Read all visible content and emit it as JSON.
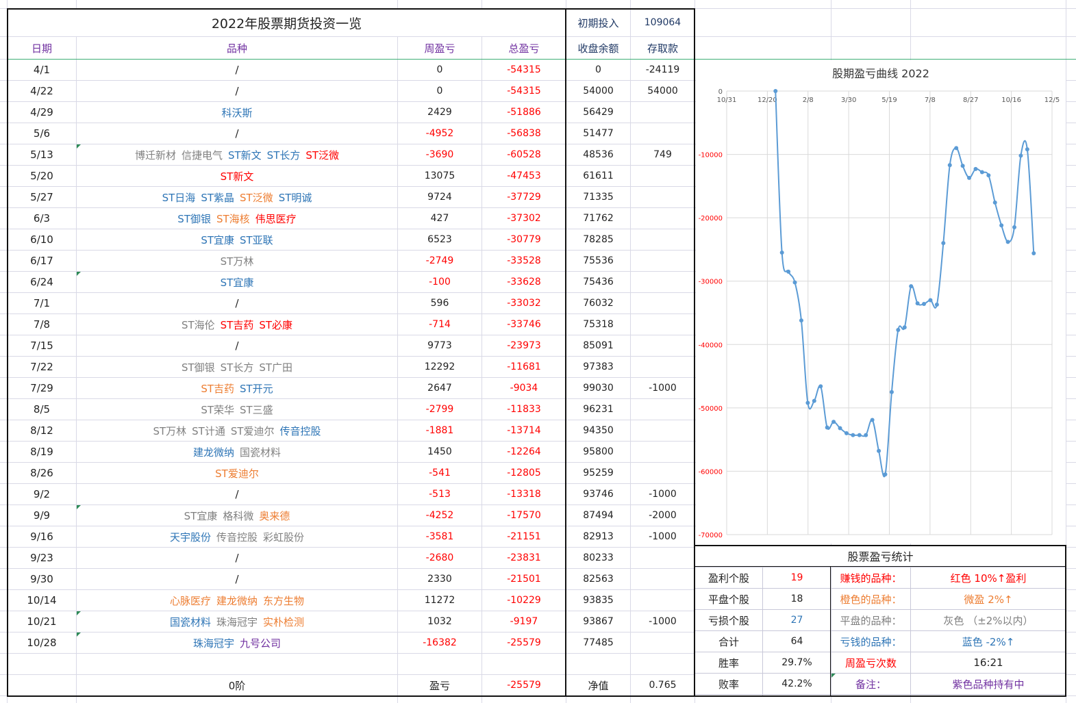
{
  "sheet_title": "2022年股票期货投资一览",
  "initial_invest_label": "初期投入",
  "initial_invest_value": "109064",
  "headers": {
    "date": "日期",
    "variety": "品种",
    "weekly": "周盈亏",
    "total": "总盈亏",
    "balance": "收盘余额",
    "deposit": "存取款"
  },
  "rows": [
    {
      "date": "4/1",
      "names": [
        {
          "t": "/",
          "c": "dark"
        }
      ],
      "weekly": "0",
      "total": "-54315",
      "balance": "0",
      "deposit": "-24119"
    },
    {
      "date": "4/22",
      "names": [
        {
          "t": "/",
          "c": "dark"
        }
      ],
      "weekly": "0",
      "total": "-54315",
      "balance": "54000",
      "deposit": "54000"
    },
    {
      "date": "4/29",
      "names": [
        {
          "t": "科沃斯",
          "c": "blue"
        }
      ],
      "weekly": "2429",
      "total": "-51886",
      "balance": "56429",
      "deposit": ""
    },
    {
      "date": "5/6",
      "names": [
        {
          "t": "/",
          "c": "dark"
        }
      ],
      "weekly": "-4952",
      "total": "-56838",
      "balance": "51477",
      "deposit": ""
    },
    {
      "date": "5/13",
      "names": [
        {
          "t": "博迁新材",
          "c": "gray"
        },
        {
          "t": "信捷电气",
          "c": "gray"
        },
        {
          "t": "ST新文",
          "c": "blue"
        },
        {
          "t": "ST长方",
          "c": "blue"
        },
        {
          "t": "ST泛微",
          "c": "red"
        }
      ],
      "weekly": "-3690",
      "total": "-60528",
      "balance": "48536",
      "deposit": "749"
    },
    {
      "date": "5/20",
      "names": [
        {
          "t": "ST新文",
          "c": "red"
        }
      ],
      "weekly": "13075",
      "total": "-47453",
      "balance": "61611",
      "deposit": ""
    },
    {
      "date": "5/27",
      "names": [
        {
          "t": "ST日海",
          "c": "blue"
        },
        {
          "t": "ST紫晶",
          "c": "blue"
        },
        {
          "t": "ST泛微",
          "c": "orange"
        },
        {
          "t": "ST明诚",
          "c": "blue"
        }
      ],
      "weekly": "9724",
      "total": "-37729",
      "balance": "71335",
      "deposit": ""
    },
    {
      "date": "6/3",
      "names": [
        {
          "t": "ST御银",
          "c": "blue"
        },
        {
          "t": "ST海核",
          "c": "orange"
        },
        {
          "t": "伟思医疗",
          "c": "red"
        }
      ],
      "weekly": "427",
      "total": "-37302",
      "balance": "71762",
      "deposit": ""
    },
    {
      "date": "6/10",
      "names": [
        {
          "t": "ST宜康",
          "c": "blue"
        },
        {
          "t": "ST亚联",
          "c": "blue"
        }
      ],
      "weekly": "6523",
      "total": "-30779",
      "balance": "78285",
      "deposit": ""
    },
    {
      "date": "6/17",
      "names": [
        {
          "t": "ST万林",
          "c": "gray"
        }
      ],
      "weekly": "-2749",
      "total": "-33528",
      "balance": "75536",
      "deposit": ""
    },
    {
      "date": "6/24",
      "names": [
        {
          "t": "ST宜康",
          "c": "blue"
        }
      ],
      "weekly": "-100",
      "total": "-33628",
      "balance": "75436",
      "deposit": ""
    },
    {
      "date": "7/1",
      "names": [
        {
          "t": "/",
          "c": "dark"
        }
      ],
      "weekly": "596",
      "total": "-33032",
      "balance": "76032",
      "deposit": ""
    },
    {
      "date": "7/8",
      "names": [
        {
          "t": "ST海伦",
          "c": "gray"
        },
        {
          "t": "ST吉药",
          "c": "red"
        },
        {
          "t": "ST必康",
          "c": "red"
        }
      ],
      "weekly": "-714",
      "total": "-33746",
      "balance": "75318",
      "deposit": ""
    },
    {
      "date": "7/15",
      "names": [
        {
          "t": "/",
          "c": "dark"
        }
      ],
      "weekly": "9773",
      "total": "-23973",
      "balance": "85091",
      "deposit": ""
    },
    {
      "date": "7/22",
      "names": [
        {
          "t": "ST御银",
          "c": "gray"
        },
        {
          "t": "ST长方",
          "c": "gray"
        },
        {
          "t": "ST广田",
          "c": "gray"
        }
      ],
      "weekly": "12292",
      "total": "-11681",
      "balance": "97383",
      "deposit": ""
    },
    {
      "date": "7/29",
      "names": [
        {
          "t": "ST吉药",
          "c": "orange"
        },
        {
          "t": "ST开元",
          "c": "blue"
        }
      ],
      "weekly": "2647",
      "total": "-9034",
      "balance": "99030",
      "deposit": "-1000"
    },
    {
      "date": "8/5",
      "names": [
        {
          "t": "ST荣华",
          "c": "gray"
        },
        {
          "t": "ST三盛",
          "c": "gray"
        }
      ],
      "weekly": "-2799",
      "total": "-11833",
      "balance": "96231",
      "deposit": ""
    },
    {
      "date": "8/12",
      "names": [
        {
          "t": "ST万林",
          "c": "gray"
        },
        {
          "t": "ST计通",
          "c": "gray"
        },
        {
          "t": "ST爱迪尔",
          "c": "gray"
        },
        {
          "t": "传音控股",
          "c": "blue"
        }
      ],
      "weekly": "-1881",
      "total": "-13714",
      "balance": "94350",
      "deposit": ""
    },
    {
      "date": "8/19",
      "names": [
        {
          "t": "建龙微纳",
          "c": "blue"
        },
        {
          "t": "国瓷材料",
          "c": "gray"
        }
      ],
      "weekly": "1450",
      "total": "-12264",
      "balance": "95800",
      "deposit": ""
    },
    {
      "date": "8/26",
      "names": [
        {
          "t": "ST爱迪尔",
          "c": "orange"
        }
      ],
      "weekly": "-541",
      "total": "-12805",
      "balance": "95259",
      "deposit": ""
    },
    {
      "date": "9/2",
      "names": [
        {
          "t": "/",
          "c": "dark"
        }
      ],
      "weekly": "-513",
      "total": "-13318",
      "balance": "93746",
      "deposit": "-1000"
    },
    {
      "date": "9/9",
      "names": [
        {
          "t": "ST宜康",
          "c": "gray"
        },
        {
          "t": "格科微",
          "c": "gray"
        },
        {
          "t": "奥来德",
          "c": "orange"
        }
      ],
      "weekly": "-4252",
      "total": "-17570",
      "balance": "87494",
      "deposit": "-2000"
    },
    {
      "date": "9/16",
      "names": [
        {
          "t": "天宇股份",
          "c": "blue"
        },
        {
          "t": "传音控股",
          "c": "gray"
        },
        {
          "t": "彩虹股份",
          "c": "gray"
        }
      ],
      "weekly": "-3581",
      "total": "-21151",
      "balance": "82913",
      "deposit": "-1000"
    },
    {
      "date": "9/23",
      "names": [
        {
          "t": "/",
          "c": "dark"
        }
      ],
      "weekly": "-2680",
      "total": "-23831",
      "balance": "80233",
      "deposit": ""
    },
    {
      "date": "9/30",
      "names": [
        {
          "t": "/",
          "c": "dark"
        }
      ],
      "weekly": "2330",
      "total": "-21501",
      "balance": "82563",
      "deposit": ""
    },
    {
      "date": "10/14",
      "names": [
        {
          "t": "心脉医疗",
          "c": "orange"
        },
        {
          "t": "建龙微纳",
          "c": "orange"
        },
        {
          "t": "东方生物",
          "c": "orange"
        }
      ],
      "weekly": "11272",
      "total": "-10229",
      "balance": "93835",
      "deposit": ""
    },
    {
      "date": "10/21",
      "names": [
        {
          "t": "国瓷材料",
          "c": "blue"
        },
        {
          "t": "珠海冠宇",
          "c": "gray"
        },
        {
          "t": "实朴检测",
          "c": "orange"
        }
      ],
      "weekly": "1032",
      "total": "-9197",
      "balance": "93867",
      "deposit": "-1000"
    },
    {
      "date": "10/28",
      "names": [
        {
          "t": "珠海冠宇",
          "c": "blue"
        },
        {
          "t": "九号公司",
          "c": "purple"
        }
      ],
      "weekly": "-16382",
      "total": "-25579",
      "balance": "77485",
      "deposit": ""
    }
  ],
  "footer": {
    "variety": "0阶",
    "weekly_label": "盈亏",
    "total": "-25579",
    "balance_label": "净值",
    "deposit": "0.765"
  },
  "stats": {
    "title": "股票盈亏统计",
    "rows": [
      {
        "k": "盈利个股",
        "v": "19",
        "vc": "red",
        "k2": "赚钱的品种：",
        "k2c": "red",
        "v2": "红色 10%↑盈利",
        "v2c": "red"
      },
      {
        "k": "平盘个股",
        "v": "18",
        "vc": "dark",
        "k2": "橙色的品种：",
        "k2c": "orange",
        "v2": "微盈 2%↑",
        "v2c": "orange"
      },
      {
        "k": "亏损个股",
        "v": "27",
        "vc": "blue",
        "k2": "平盘的品种：",
        "k2c": "gray",
        "v2": "灰色 （±2%以内）",
        "v2c": "gray"
      },
      {
        "k": "合计",
        "v": "64",
        "vc": "dark",
        "k2": "亏钱的品种：",
        "k2c": "blue",
        "v2": "蓝色 -2%↑",
        "v2c": "blue"
      },
      {
        "k": "胜率",
        "v": "29.7%",
        "vc": "dark",
        "k2": "周盈亏次数",
        "k2c": "red",
        "v2": "16:21",
        "v2c": "dark"
      },
      {
        "k": "败率",
        "v": "42.2%",
        "vc": "dark",
        "k2": "备注：",
        "k2c": "purple",
        "v2": "紫色品种持有中",
        "v2c": "purple"
      }
    ]
  },
  "chart_data": {
    "type": "line",
    "title": "股期盈亏曲线 2022",
    "x_tick_labels": [
      "10/31",
      "12/20",
      "2/8",
      "3/30",
      "5/19",
      "7/8",
      "8/27",
      "10/16",
      "12/5"
    ],
    "y_tick_labels": [
      "0",
      "-10000",
      "-20000",
      "-30000",
      "-40000",
      "-50000",
      "-60000",
      "-70000"
    ],
    "ylim": [
      -70000,
      0
    ],
    "color": "#5b9bd5",
    "series": [
      {
        "values": [
          0,
          -25500,
          -28500,
          -30200,
          -36200,
          -49200,
          -48900,
          -46600,
          -53100,
          -52200,
          -53200,
          -54000,
          -54300,
          -54300,
          -54300,
          -51900,
          -56800,
          -60500,
          -47500,
          -37700,
          -37300,
          -30800,
          -33500,
          -33600,
          -33000,
          -33700,
          -24000,
          -11700,
          -9000,
          -11800,
          -13700,
          -12300,
          -12800,
          -13300,
          -17600,
          -21200,
          -23800,
          -21500,
          -10200,
          -9200,
          -25600
        ]
      }
    ]
  }
}
